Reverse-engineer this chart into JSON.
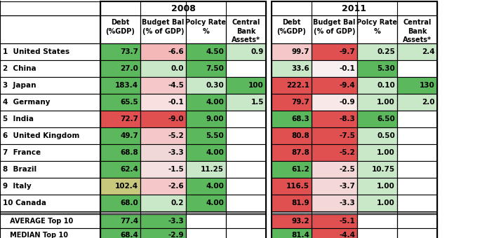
{
  "rows": [
    {
      "label": "1  United States",
      "d08": "73.7",
      "b08": "-6.6",
      "p08": "4.50",
      "c08": "0.9",
      "d11": "99.7",
      "b11": "-9.7",
      "p11": "0.25",
      "c11": "2.4"
    },
    {
      "label": "2  China",
      "d08": "27.0",
      "b08": "0.0",
      "p08": "7.50",
      "c08": "",
      "d11": "33.6",
      "b11": "-0.1",
      "p11": "5.30",
      "c11": ""
    },
    {
      "label": "3  Japan",
      "d08": "183.4",
      "b08": "-4.5",
      "p08": "0.30",
      "c08": "100",
      "d11": "222.1",
      "b11": "-9.4",
      "p11": "0.10",
      "c11": "130"
    },
    {
      "label": "4  Germany",
      "d08": "65.5",
      "b08": "-0.1",
      "p08": "4.00",
      "c08": "1.5",
      "d11": "79.7",
      "b11": "-0.9",
      "p11": "1.00",
      "c11": "2.0"
    },
    {
      "label": "5  India",
      "d08": "72.7",
      "b08": "-9.0",
      "p08": "9.00",
      "c08": "",
      "d11": "68.3",
      "b11": "-8.3",
      "p11": "6.50",
      "c11": ""
    },
    {
      "label": "6  United Kingdom",
      "d08": "49.7",
      "b08": "-5.2",
      "p08": "5.50",
      "c08": "",
      "d11": "80.8",
      "b11": "-7.5",
      "p11": "0.50",
      "c11": ""
    },
    {
      "label": "7  France",
      "d08": "68.8",
      "b08": "-3.3",
      "p08": "4.00",
      "c08": "",
      "d11": "87.8",
      "b11": "-5.2",
      "p11": "1.00",
      "c11": ""
    },
    {
      "label": "8  Brazil",
      "d08": "62.4",
      "b08": "-1.5",
      "p08": "11.25",
      "c08": "",
      "d11": "61.2",
      "b11": "-2.5",
      "p11": "10.75",
      "c11": ""
    },
    {
      "label": "9  Italy",
      "d08": "102.4",
      "b08": "-2.6",
      "p08": "4.00",
      "c08": "",
      "d11": "116.5",
      "b11": "-3.7",
      "p11": "1.00",
      "c11": ""
    },
    {
      "label": "10 Canada",
      "d08": "68.0",
      "b08": "0.2",
      "p08": "4.00",
      "c08": "",
      "d11": "81.9",
      "b11": "-3.3",
      "p11": "1.00",
      "c11": ""
    }
  ],
  "summary": [
    {
      "label": "   AVERAGE Top 10",
      "d08": "77.4",
      "b08": "-3.3",
      "p08": "",
      "c08": "",
      "d11": "93.2",
      "b11": "-5.1",
      "p11": "",
      "c11": ""
    },
    {
      "label": "   MEDIAN Top 10",
      "d08": "68.4",
      "b08": "-2.9",
      "p08": "",
      "c08": "",
      "d11": "81.4",
      "b11": "-4.4",
      "p11": "",
      "c11": ""
    }
  ],
  "col_headers_line1": [
    "Debt",
    "Budget Bal",
    "Polcy Rate",
    "Central"
  ],
  "col_headers_line2": [
    "(%GDP)",
    "(% of GDP)",
    "%",
    "Bank"
  ],
  "col_headers_line3": [
    "",
    "",
    "",
    "Assets*"
  ],
  "year_08": "2008",
  "year_11": "2011",
  "cell_colors": {
    "d08": [
      "#5cb85c",
      "#5cb85c",
      "#5cb85c",
      "#5cb85c",
      "#e05050",
      "#5cb85c",
      "#5cb85c",
      "#5cb85c",
      "#c8c87c",
      "#5cb85c"
    ],
    "b08": [
      "#f4b8b8",
      "#c8e8c8",
      "#f4c8c8",
      "#f8e0e0",
      "#e05050",
      "#f4c8c8",
      "#f0d8d8",
      "#f4e0e0",
      "#f4c8c8",
      "#c8e8c8"
    ],
    "p08": [
      "#5cb85c",
      "#5cb85c",
      "#c8e8c8",
      "#5cb85c",
      "#5cb85c",
      "#5cb85c",
      "#5cb85c",
      "#c8e8c8",
      "#5cb85c",
      "#5cb85c"
    ],
    "c08": [
      "#c8e8c8",
      "#ffffff",
      "#5cb85c",
      "#c8e8c8",
      "#ffffff",
      "#ffffff",
      "#ffffff",
      "#ffffff",
      "#ffffff",
      "#ffffff"
    ],
    "d11": [
      "#f4c8c8",
      "#c8e8c8",
      "#e05050",
      "#e05050",
      "#5cb85c",
      "#e05050",
      "#e05050",
      "#5cb85c",
      "#e05050",
      "#e05050"
    ],
    "b11": [
      "#e05050",
      "#f8f0f0",
      "#e05050",
      "#f8e8e8",
      "#e05050",
      "#e05050",
      "#e05050",
      "#f4d8d8",
      "#f4d8d8",
      "#f4d8d8"
    ],
    "p11": [
      "#c8e8c8",
      "#5cb85c",
      "#c8e8c8",
      "#c8e8c8",
      "#5cb85c",
      "#c8e8c8",
      "#c8e8c8",
      "#c8e8c8",
      "#c8e8c8",
      "#c8e8c8"
    ],
    "c11": [
      "#c8e8c8",
      "#ffffff",
      "#5cb85c",
      "#c8e8c8",
      "#ffffff",
      "#ffffff",
      "#ffffff",
      "#ffffff",
      "#ffffff",
      "#ffffff"
    ]
  },
  "summary_colors": {
    "d08": [
      "#5cb85c",
      "#5cb85c"
    ],
    "b08": [
      "#5cb85c",
      "#5cb85c"
    ],
    "d11": [
      "#e05050",
      "#5cb85c"
    ],
    "b11": [
      "#e05050",
      "#e05050"
    ]
  },
  "bg_color": "#f5f5f5",
  "header_color": "#ffffff",
  "label_color": "#ffffff"
}
